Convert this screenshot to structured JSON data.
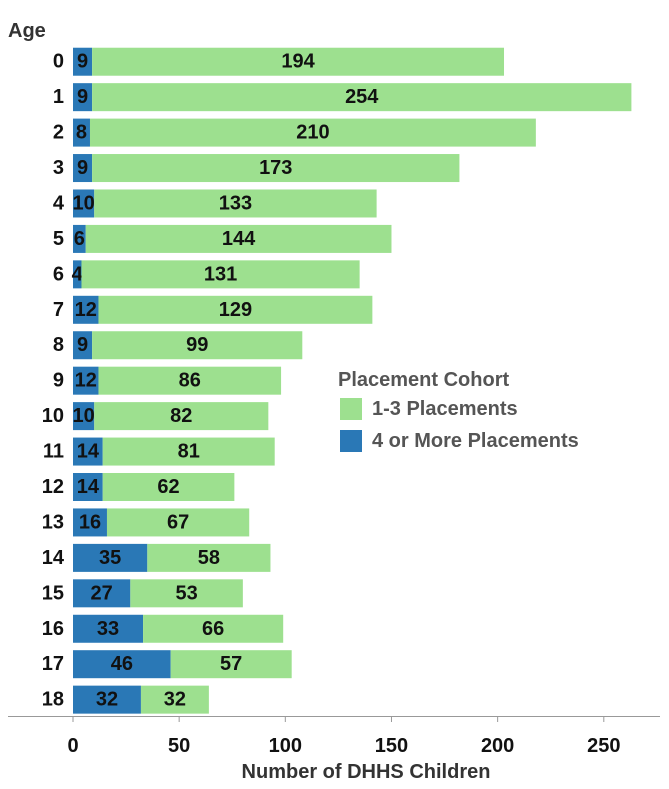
{
  "chart_data": {
    "type": "stacked-barh",
    "y_axis_label": "Age",
    "x_axis_label": "Number of DHHS Children",
    "legend_title": "Placement Cohort",
    "categories": [
      "0",
      "1",
      "2",
      "3",
      "4",
      "5",
      "6",
      "7",
      "8",
      "9",
      "10",
      "11",
      "12",
      "13",
      "14",
      "15",
      "16",
      "17",
      "18"
    ],
    "series": [
      {
        "name": "1-3 Placements",
        "color": "#9de08f",
        "values": [
          194,
          254,
          210,
          173,
          133,
          144,
          131,
          129,
          99,
          86,
          82,
          81,
          62,
          67,
          58,
          53,
          66,
          57,
          32
        ]
      },
      {
        "name": "4 or More Placements",
        "color": "#2a78b6",
        "values": [
          9,
          9,
          8,
          9,
          10,
          6,
          4,
          12,
          9,
          12,
          10,
          14,
          14,
          16,
          35,
          27,
          33,
          46,
          32
        ]
      }
    ],
    "xlim": [
      0,
      276
    ],
    "xticks": [
      0,
      50,
      100,
      150,
      200,
      250
    ]
  }
}
